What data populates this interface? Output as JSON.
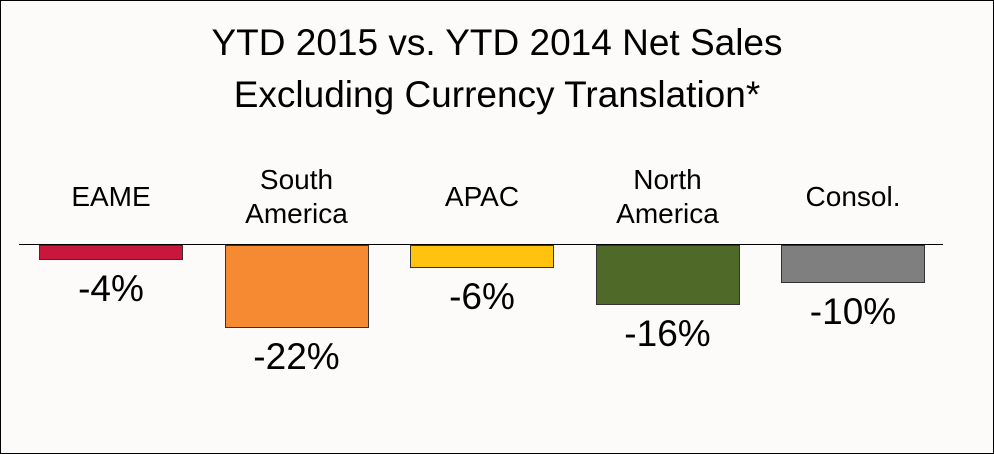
{
  "chart_data": {
    "type": "bar",
    "title": "YTD 2015 vs. YTD 2014 Net Sales",
    "subtitle": "Excluding Currency Translation*",
    "categories": [
      "EAME",
      "South America",
      "APAC",
      "North America",
      "Consol."
    ],
    "values": [
      -4,
      -22,
      -6,
      -16,
      -10
    ],
    "value_labels": [
      "-4%",
      "-22%",
      "-6%",
      "-16%",
      "-10%"
    ],
    "colors": [
      "#c8173a",
      "#f58a32",
      "#ffc20e",
      "#4f6a28",
      "#7f7f7f"
    ]
  }
}
